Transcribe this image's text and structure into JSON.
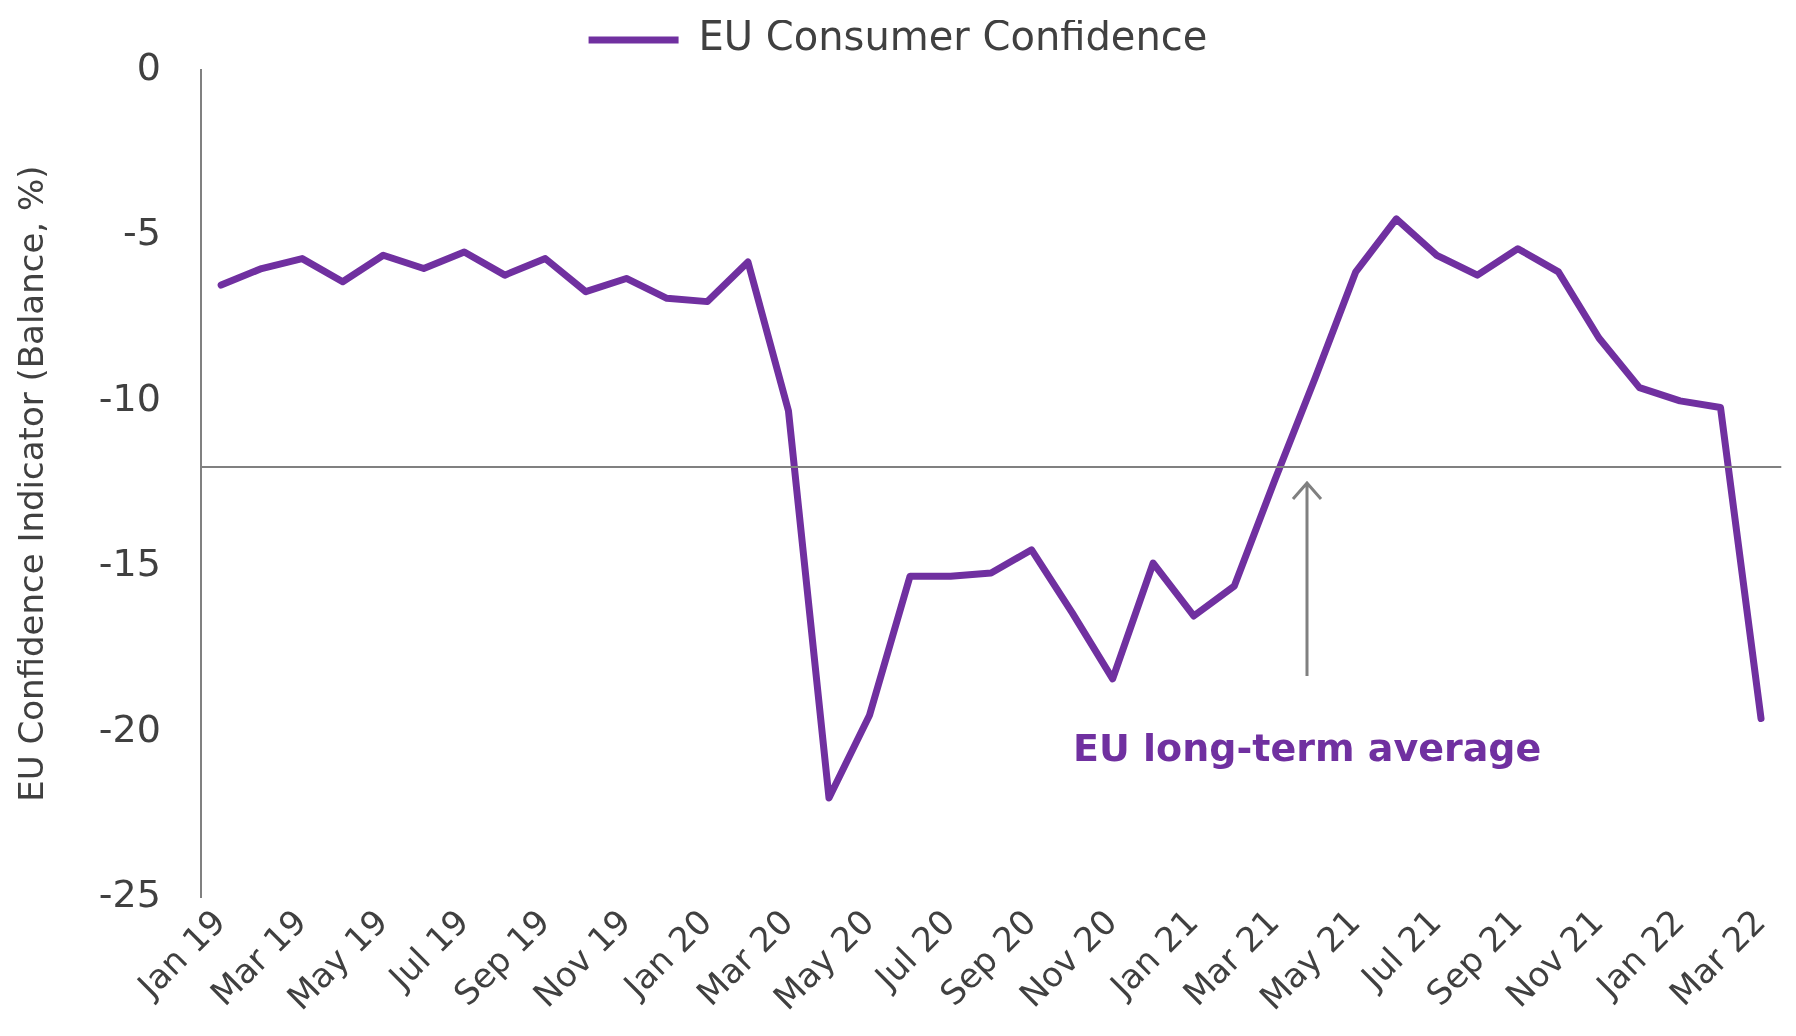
{
  "chart_data": {
    "type": "line",
    "ylabel": "EU Confidence Indicator (Balance, %)",
    "categories": [
      "Jan 19",
      null,
      "Mar 19",
      null,
      "May 19",
      null,
      "Jul 19",
      null,
      "Sep 19",
      null,
      "Nov 19",
      null,
      "Jan 20",
      null,
      "Mar 20",
      null,
      "May 20",
      null,
      "Jul 20",
      null,
      "Sep 20",
      null,
      "Nov 20",
      null,
      "Jan 21",
      null,
      "Mar 21",
      null,
      "May 21",
      null,
      "Jul 21",
      null,
      "Sep 21",
      null,
      "Nov 21",
      null,
      "Jan 22",
      null,
      "Mar 22"
    ],
    "series": [
      {
        "name": "EU Consumer Confidence",
        "color": "#7030a0",
        "values": [
          -6.5,
          -6.0,
          -5.7,
          -6.4,
          -5.6,
          -6.0,
          -5.5,
          -6.2,
          -5.7,
          -6.7,
          -6.3,
          -6.9,
          -7.0,
          -5.8,
          -10.3,
          -22.0,
          -19.5,
          -15.3,
          -15.3,
          -15.2,
          -14.5,
          -16.4,
          -18.4,
          -14.9,
          -16.5,
          -15.6,
          -12.4,
          -9.3,
          -6.1,
          -4.5,
          -5.6,
          -6.2,
          -5.4,
          -6.1,
          -8.1,
          -9.6,
          -10.0,
          -10.2,
          -19.6
        ]
      }
    ],
    "ylim": [
      -25,
      0
    ],
    "yticks": [
      -25,
      -20,
      -15,
      -10,
      -5,
      0
    ],
    "grid": false,
    "legend": "top",
    "marker": "none",
    "line_style": "solid",
    "ref_lines": [
      {
        "axis": "y",
        "value": -12,
        "color": "#808080"
      }
    ],
    "annotations": [
      "EU long-term average"
    ]
  }
}
